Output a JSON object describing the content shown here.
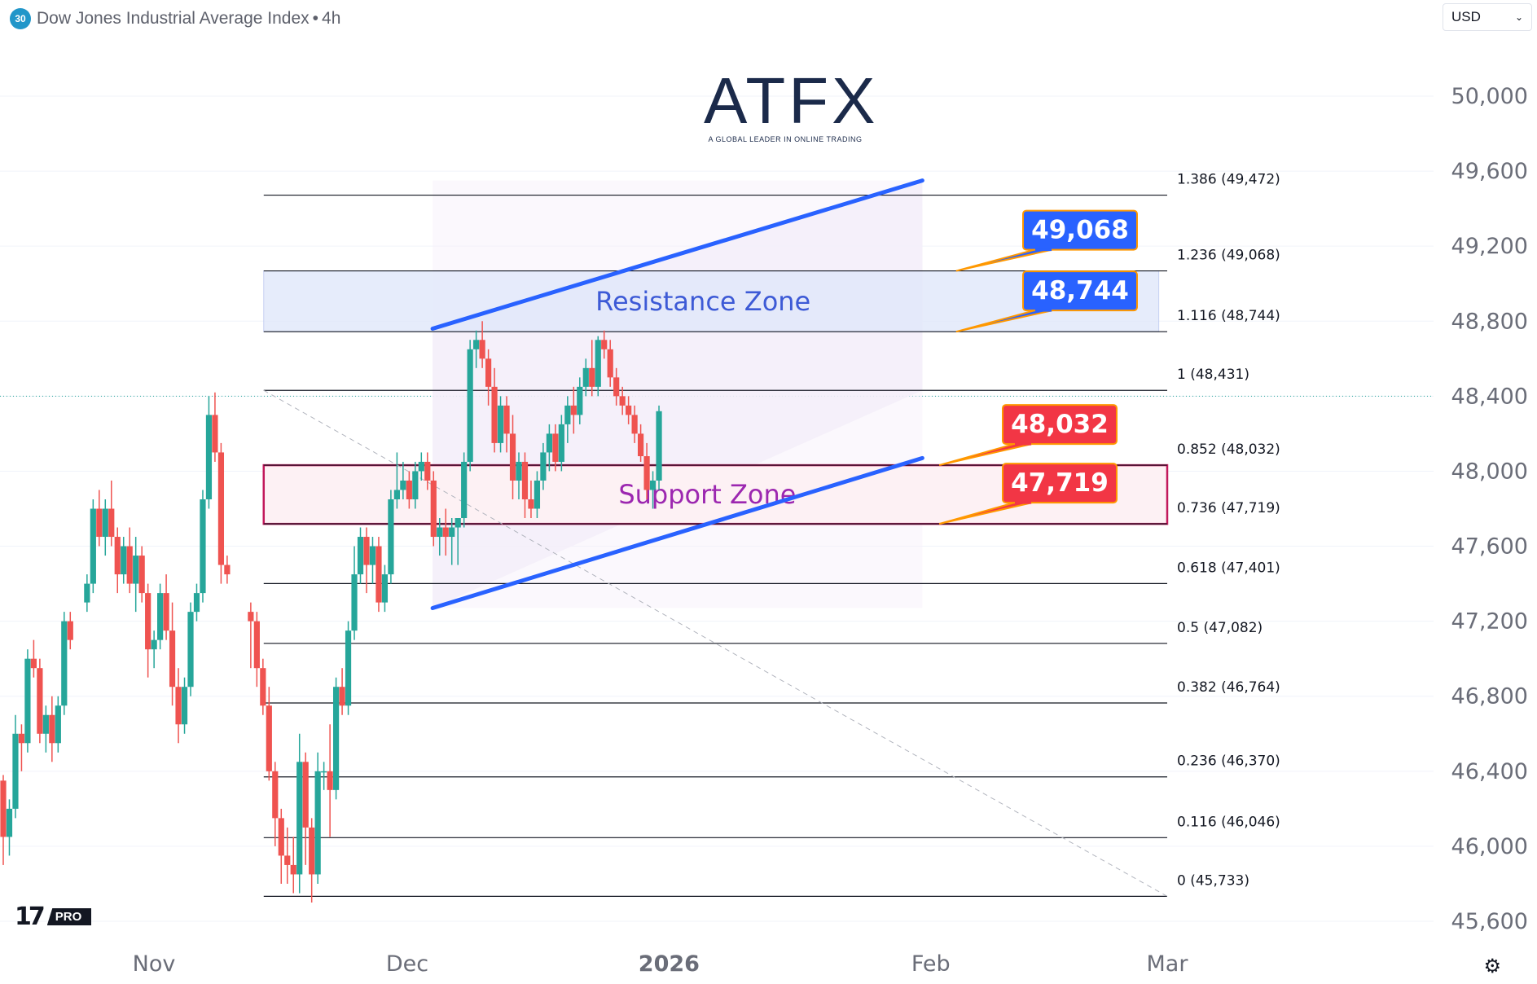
{
  "header": {
    "badge": "30",
    "title": "Dow Jones Industrial Average Index",
    "separator": "•",
    "interval": "4h"
  },
  "currency_select": {
    "value": "USD",
    "icon": "chevron-down-icon"
  },
  "logo": {
    "word": "ATFX",
    "tagline": "A GLOBAL LEADER IN ONLINE TRADING"
  },
  "watermark": {
    "mark": "17",
    "pro": "PRO"
  },
  "settings_icon": "gear-icon",
  "colors": {
    "up": "#26a69a",
    "down": "#ef5350",
    "channel": "#2962ff",
    "resistance_fill": "#e1e8fb",
    "support_border": "#c2185b",
    "support_fill": "#fdf1f4",
    "fib_line": "#131722",
    "resistance_text": "#3d5ad6",
    "support_text": "#9c27b0",
    "callout_blue": "#2962ff",
    "callout_red": "#f23645"
  },
  "chart_data": {
    "type": "candlestick",
    "title": "Dow Jones Industrial Average Index",
    "interval": "4h",
    "ylim": [
      45500,
      50300
    ],
    "yticks": [
      {
        "v": 50000,
        "label": "50,000"
      },
      {
        "v": 49600,
        "label": "49,600"
      },
      {
        "v": 49200,
        "label": "49,200"
      },
      {
        "v": 48800,
        "label": "48,800"
      },
      {
        "v": 48400,
        "label": "48,400"
      },
      {
        "v": 48000,
        "label": "48,000"
      },
      {
        "v": 47600,
        "label": "47,600"
      },
      {
        "v": 47200,
        "label": "47,200"
      },
      {
        "v": 46800,
        "label": "46,800"
      },
      {
        "v": 46400,
        "label": "46,400"
      },
      {
        "v": 46000,
        "label": "46,000"
      },
      {
        "v": 45600,
        "label": "45,600"
      }
    ],
    "xticks": [
      {
        "t": "2025-11-01",
        "label": "Nov",
        "bold": false
      },
      {
        "t": "2025-12-01",
        "label": "Dec",
        "bold": false
      },
      {
        "t": "2026-01-01",
        "label": "2026",
        "bold": true
      },
      {
        "t": "2026-02-01",
        "label": "Feb",
        "bold": false
      },
      {
        "t": "2026-03-01",
        "label": "Mar",
        "bold": false
      }
    ],
    "xlim": [
      "2025-10-20",
      "2026-03-17"
    ],
    "current_price": 48400,
    "fib_levels": [
      {
        "ratio": "1.386",
        "price": 49472,
        "label": "1.386 (49,472)"
      },
      {
        "ratio": "1.236",
        "price": 49068,
        "label": "1.236 (49,068)"
      },
      {
        "ratio": "1.116",
        "price": 48744,
        "label": "1.116 (48,744)"
      },
      {
        "ratio": "1",
        "price": 48431,
        "label": "1 (48,431)"
      },
      {
        "ratio": "0.852",
        "price": 48032,
        "label": "0.852 (48,032)"
      },
      {
        "ratio": "0.736",
        "price": 47719,
        "label": "0.736 (47,719)"
      },
      {
        "ratio": "0.618",
        "price": 47401,
        "label": "0.618 (47,401)"
      },
      {
        "ratio": "0.5",
        "price": 47082,
        "label": "0.5 (47,082)"
      },
      {
        "ratio": "0.382",
        "price": 46764,
        "label": "0.382 (46,764)"
      },
      {
        "ratio": "0.236",
        "price": 46370,
        "label": "0.236 (46,370)"
      },
      {
        "ratio": "0.116",
        "price": 46046,
        "label": "0.116 (46,046)"
      },
      {
        "ratio": "0",
        "price": 45733,
        "label": "0 (45,733)"
      }
    ],
    "fib_range": {
      "start": "2025-11-14",
      "end": "2026-03-01"
    },
    "fib_trend": {
      "from": [
        "2025-11-14",
        48431
      ],
      "to": [
        "2026-03-01",
        45733
      ]
    },
    "zones": [
      {
        "name": "Resistance Zone",
        "low": 48744,
        "high": 49068,
        "start": "2025-11-14",
        "end": "2026-02-28"
      },
      {
        "name": "Support Zone",
        "low": 47719,
        "high": 48032,
        "start": "2025-11-14",
        "end": "2026-03-01"
      }
    ],
    "channel": {
      "upper": [
        [
          "2025-12-04",
          48760
        ],
        [
          "2026-01-31",
          49550
        ]
      ],
      "lower": [
        [
          "2025-12-04",
          47270
        ],
        [
          "2026-01-31",
          48070
        ]
      ],
      "shade": {
        "start": "2025-12-04",
        "end": "2026-01-31"
      }
    },
    "callouts": [
      {
        "label": "49,068",
        "price": 49068,
        "anchor": "2026-02-04",
        "color": "blue"
      },
      {
        "label": "48,744",
        "price": 48744,
        "anchor": "2026-02-04",
        "color": "blue"
      },
      {
        "label": "48,032",
        "price": 48032,
        "anchor": "2026-02-02",
        "color": "red"
      },
      {
        "label": "47,719",
        "price": 47719,
        "anchor": "2026-02-02",
        "color": "red"
      }
    ],
    "candles": [
      [
        0,
        46350,
        46380,
        45900,
        46050
      ],
      [
        0.8,
        46050,
        46250,
        45950,
        46200
      ],
      [
        1.6,
        46200,
        46700,
        46150,
        46600
      ],
      [
        2.4,
        46600,
        46650,
        46400,
        46550
      ],
      [
        3.2,
        46550,
        47050,
        46500,
        47000
      ],
      [
        4,
        47000,
        47100,
        46900,
        46950
      ],
      [
        4.8,
        46950,
        47000,
        46550,
        46600
      ],
      [
        5.6,
        46600,
        46750,
        46500,
        46700
      ],
      [
        6.4,
        46700,
        46800,
        46450,
        46550
      ],
      [
        7.2,
        46550,
        46800,
        46500,
        46750
      ],
      [
        8,
        46750,
        47250,
        46700,
        47200
      ],
      [
        8.8,
        47200,
        47250,
        47050,
        47100
      ],
      [
        11,
        47300,
        47450,
        47250,
        47400
      ],
      [
        11.8,
        47400,
        47850,
        47350,
        47800
      ],
      [
        12.6,
        47800,
        47900,
        47600,
        47650
      ],
      [
        13.4,
        47650,
        47850,
        47550,
        47800
      ],
      [
        14.2,
        47800,
        47950,
        47600,
        47650
      ],
      [
        15,
        47650,
        47700,
        47350,
        47450
      ],
      [
        15.8,
        47450,
        47650,
        47400,
        47600
      ],
      [
        16.6,
        47600,
        47700,
        47350,
        47400
      ],
      [
        17.4,
        47400,
        47650,
        47250,
        47550
      ],
      [
        18.2,
        47550,
        47600,
        47300,
        47350
      ],
      [
        19,
        47350,
        47400,
        46900,
        47050
      ],
      [
        19.8,
        47050,
        47150,
        46950,
        47100
      ],
      [
        20.6,
        47100,
        47400,
        47050,
        47350
      ],
      [
        21.4,
        47350,
        47450,
        47100,
        47150
      ],
      [
        22.2,
        47150,
        47300,
        46750,
        46850
      ],
      [
        23,
        46850,
        46950,
        46550,
        46650
      ],
      [
        23.8,
        46650,
        46900,
        46600,
        46850
      ],
      [
        24.6,
        46850,
        47300,
        46800,
        47250
      ],
      [
        25.4,
        47250,
        47400,
        47200,
        47350
      ],
      [
        26.2,
        47350,
        47900,
        47300,
        47850
      ],
      [
        27,
        47850,
        48400,
        47800,
        48300
      ],
      [
        27.8,
        48300,
        48420,
        48050,
        48100
      ],
      [
        28.6,
        48100,
        48150,
        47400,
        47500
      ],
      [
        29.4,
        47500,
        47550,
        47400,
        47450
      ],
      [
        32.5,
        47250,
        47300,
        46950,
        47200
      ],
      [
        33.3,
        47200,
        47250,
        46850,
        46950
      ],
      [
        34.1,
        46950,
        47000,
        46700,
        46750
      ],
      [
        34.9,
        46750,
        46850,
        46350,
        46400
      ],
      [
        35.7,
        46400,
        46450,
        46000,
        46150
      ],
      [
        36.5,
        46150,
        46200,
        45800,
        45950
      ],
      [
        37.3,
        45950,
        46100,
        45800,
        45900
      ],
      [
        38.1,
        45900,
        46050,
        45750,
        45850
      ],
      [
        38.9,
        45850,
        46600,
        45750,
        46450
      ],
      [
        39.7,
        46450,
        46500,
        45900,
        46100
      ],
      [
        40.5,
        46100,
        46150,
        45700,
        45850
      ],
      [
        41.3,
        45850,
        46500,
        45800,
        46400
      ],
      [
        42.1,
        46400,
        46450,
        46300,
        46400
      ],
      [
        42.9,
        46400,
        46650,
        46050,
        46300
      ],
      [
        43.7,
        46300,
        46900,
        46250,
        46850
      ],
      [
        44.5,
        46850,
        46950,
        46700,
        46750
      ],
      [
        45.3,
        46750,
        47200,
        46700,
        47150
      ],
      [
        46.1,
        47150,
        47600,
        47100,
        47450
      ],
      [
        46.9,
        47450,
        47700,
        47400,
        47650
      ],
      [
        47.7,
        47650,
        47700,
        47350,
        47500
      ],
      [
        48.5,
        47500,
        47650,
        47400,
        47600
      ],
      [
        49.3,
        47600,
        47650,
        47250,
        47300
      ],
      [
        50.1,
        47300,
        47500,
        47250,
        47450
      ],
      [
        50.9,
        47450,
        47900,
        47400,
        47850
      ],
      [
        51.7,
        47850,
        48100,
        47800,
        47900
      ],
      [
        52.5,
        47900,
        48050,
        47850,
        47950
      ],
      [
        53.3,
        47950,
        48000,
        47800,
        47850
      ],
      [
        54.1,
        47850,
        48050,
        47800,
        48000
      ],
      [
        54.9,
        48000,
        48100,
        47950,
        48050
      ],
      [
        55.7,
        48050,
        48100,
        47900,
        47950
      ],
      [
        56.5,
        47950,
        48000,
        47600,
        47650
      ],
      [
        57.3,
        47650,
        47750,
        47550,
        47700
      ],
      [
        58.1,
        47700,
        47800,
        47550,
        47650
      ],
      [
        58.9,
        47650,
        47750,
        47500,
        47700
      ],
      [
        59.7,
        47700,
        47750,
        47500,
        47750
      ],
      [
        60.5,
        47750,
        48100,
        47700,
        48050
      ],
      [
        61.3,
        48050,
        48700,
        48000,
        48650
      ],
      [
        62.1,
        48650,
        48750,
        48550,
        48700
      ],
      [
        62.9,
        48700,
        48800,
        48550,
        48600
      ],
      [
        63.7,
        48600,
        48650,
        48350,
        48450
      ],
      [
        64.5,
        48450,
        48550,
        48100,
        48150
      ],
      [
        65.3,
        48150,
        48400,
        48100,
        48350
      ],
      [
        66.1,
        48350,
        48400,
        48100,
        48200
      ],
      [
        66.9,
        48200,
        48300,
        47850,
        47950
      ],
      [
        67.7,
        47950,
        48100,
        47850,
        48050
      ],
      [
        68.5,
        48050,
        48100,
        47750,
        47850
      ],
      [
        69.3,
        47850,
        47950,
        47750,
        47800
      ],
      [
        70.1,
        47800,
        48000,
        47750,
        47950
      ],
      [
        70.9,
        47950,
        48150,
        47900,
        48100
      ],
      [
        71.7,
        48100,
        48250,
        48000,
        48200
      ],
      [
        72.5,
        48200,
        48250,
        48000,
        48050
      ],
      [
        73.3,
        48050,
        48300,
        48000,
        48250
      ],
      [
        74.1,
        48250,
        48400,
        48150,
        48350
      ],
      [
        74.9,
        48350,
        48450,
        48200,
        48300
      ],
      [
        75.7,
        48300,
        48500,
        48250,
        48450
      ],
      [
        76.5,
        48450,
        48600,
        48400,
        48550
      ],
      [
        77.3,
        48550,
        48700,
        48400,
        48450
      ],
      [
        78.1,
        48450,
        48720,
        48400,
        48700
      ],
      [
        78.9,
        48700,
        48750,
        48600,
        48650
      ],
      [
        79.7,
        48650,
        48700,
        48450,
        48500
      ],
      [
        80.5,
        48500,
        48550,
        48350,
        48400
      ],
      [
        81.3,
        48400,
        48450,
        48300,
        48350
      ],
      [
        82.1,
        48350,
        48400,
        48250,
        48300
      ],
      [
        82.9,
        48300,
        48350,
        48150,
        48200
      ],
      [
        83.7,
        48200,
        48250,
        48050,
        48080
      ],
      [
        84.5,
        48080,
        48150,
        47850,
        47900
      ],
      [
        85.3,
        47900,
        48000,
        47800,
        47950
      ],
      [
        86.1,
        47950,
        48350,
        47900,
        48320
      ]
    ],
    "candle_x_note": "x = trading days since 2025-10-20"
  }
}
